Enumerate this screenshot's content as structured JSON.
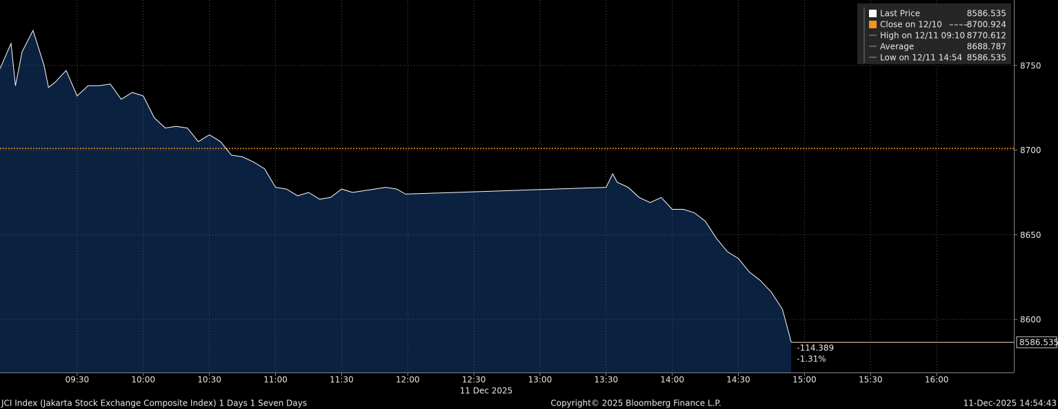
{
  "chart_data": {
    "type": "area",
    "x": [
      "08:55",
      "09:00",
      "09:02",
      "09:05",
      "09:10",
      "09:15",
      "09:17",
      "09:20",
      "09:25",
      "09:30",
      "09:35",
      "09:40",
      "09:45",
      "09:50",
      "09:55",
      "10:00",
      "10:05",
      "10:10",
      "10:15",
      "10:20",
      "10:25",
      "10:30",
      "10:35",
      "10:40",
      "10:45",
      "10:50",
      "10:55",
      "11:00",
      "11:05",
      "11:10",
      "11:15",
      "11:20",
      "11:25",
      "11:30",
      "11:35",
      "11:40",
      "11:45",
      "11:50",
      "11:55",
      "11:59",
      "13:30",
      "13:33",
      "13:35",
      "13:40",
      "13:45",
      "13:50",
      "13:55",
      "14:00",
      "14:05",
      "14:10",
      "14:15",
      "14:20",
      "14:25",
      "14:30",
      "14:35",
      "14:40",
      "14:45",
      "14:50",
      "14:54"
    ],
    "values": [
      8748,
      8763,
      8738,
      8758,
      8770.612,
      8750,
      8737,
      8740,
      8747,
      8732,
      8738,
      8738,
      8739,
      8730,
      8734,
      8732,
      8719,
      8713,
      8714,
      8713,
      8705,
      8709,
      8705,
      8697,
      8696,
      8693,
      8689,
      8678,
      8677,
      8673,
      8675,
      8671,
      8672,
      8677,
      8675,
      8676,
      8677,
      8678,
      8677,
      8674,
      8678,
      8686,
      8681,
      8678,
      8672,
      8669,
      8672,
      8665,
      8665,
      8663,
      8658,
      8648,
      8640,
      8636,
      8628,
      8623,
      8616,
      8606,
      8586.535
    ],
    "color": "#ffffff",
    "fill": "#0b2140",
    "xlim": [
      "08:55",
      "16:35"
    ],
    "xticks": [
      "09:30",
      "10:00",
      "10:30",
      "11:00",
      "11:30",
      "12:00",
      "12:30",
      "13:00",
      "13:30",
      "14:00",
      "14:30",
      "15:00",
      "15:30",
      "16:00"
    ],
    "x_label": "11 Dec 2025",
    "ylim": [
      8568.7,
      8788.6
    ],
    "yticks": [
      8600,
      8650,
      8700,
      8750
    ],
    "grid": true,
    "reference_line": {
      "value": 8700.924,
      "color": "#f7941d"
    },
    "change": {
      "value": -114.389,
      "percent": {
        "value": -1.31,
        "label": "-1.31%"
      },
      "color": "#f7941d"
    },
    "legend": [
      {
        "label": "Last Price",
        "value": 8586.535,
        "color": "#ffffff"
      },
      {
        "label": "Close on 12/10",
        "value": 8700.924,
        "color": "#f7941d"
      },
      {
        "label": "High on 12/11 09:10",
        "value": 8770.612
      },
      {
        "label": "Average",
        "value": 8688.787
      },
      {
        "label": "Low on 12/11 14:54",
        "value": 8586.535
      }
    ],
    "footer": {
      "left": "JCI Index (Jakarta Stock Exchange Composite Index) 1 Days 1 Seven Days",
      "center": "Copyright© 2025 Bloomberg Finance L.P.",
      "right": "11-Dec-2025 14:54:43"
    }
  }
}
